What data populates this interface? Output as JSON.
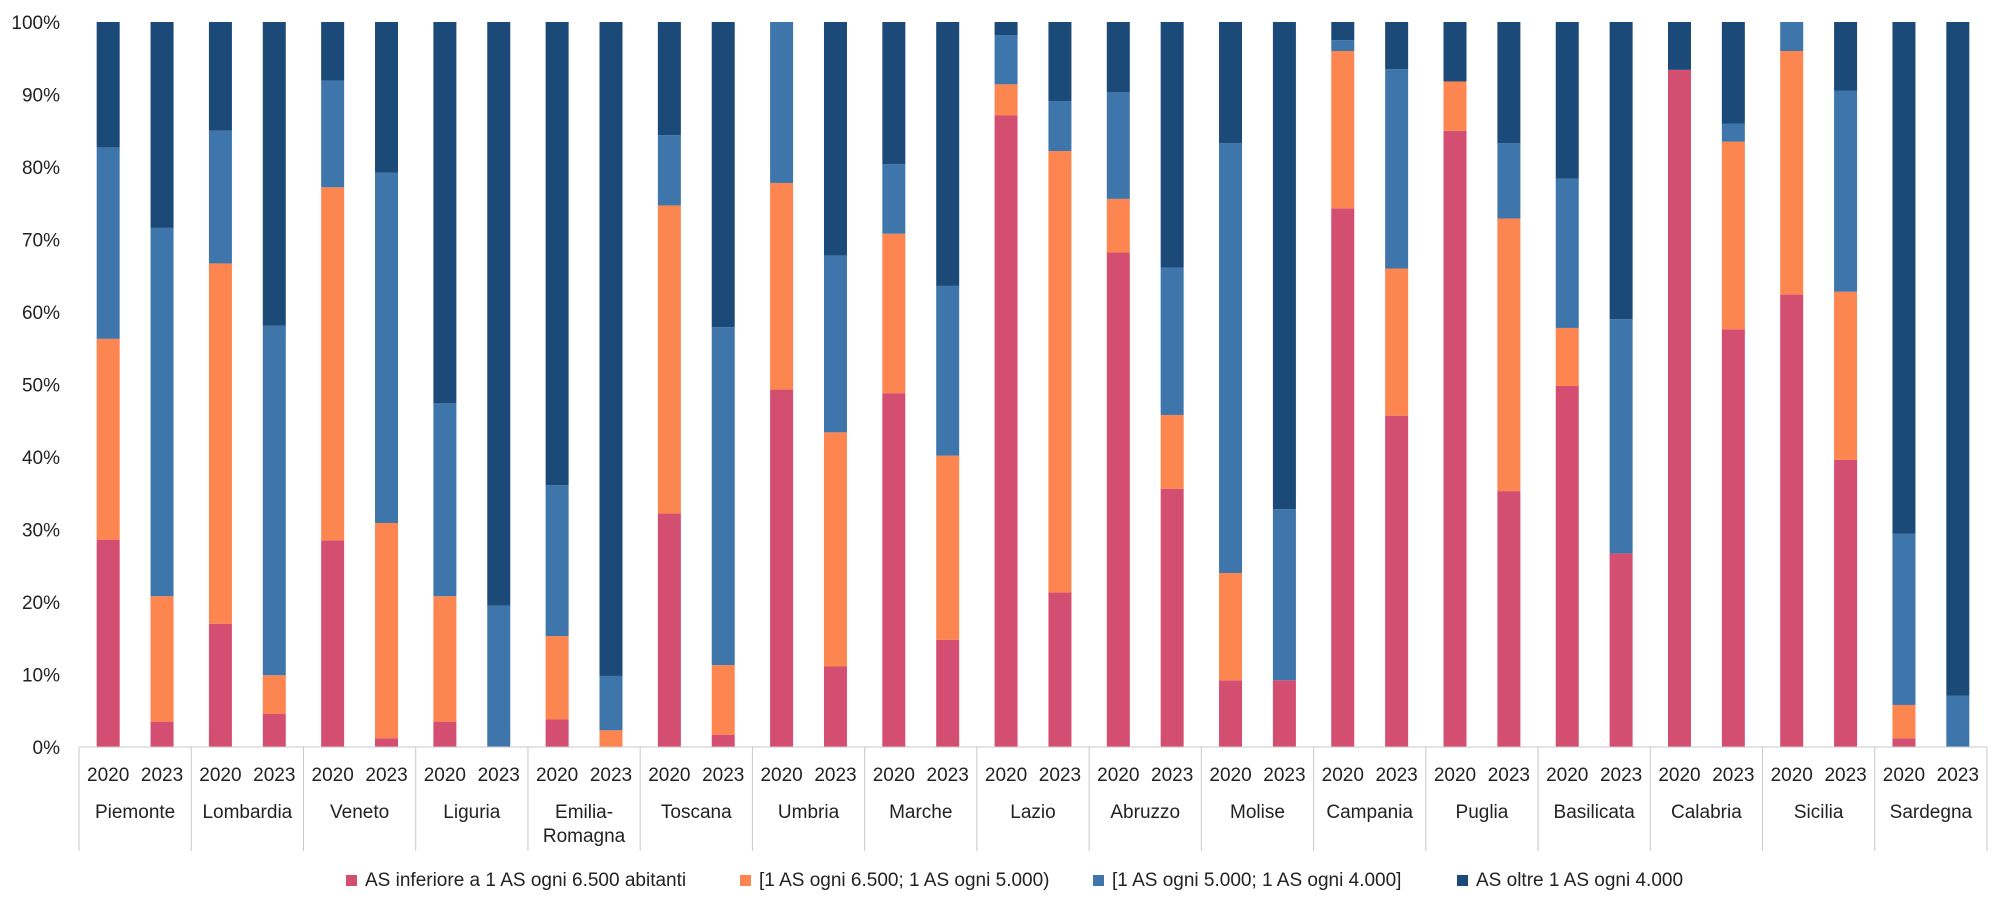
{
  "chart_data": {
    "type": "bar",
    "stacked": true,
    "ylim": [
      0,
      100
    ],
    "y_ticks": [
      "0%",
      "10%",
      "20%",
      "30%",
      "40%",
      "50%",
      "60%",
      "70%",
      "80%",
      "90%",
      "100%"
    ],
    "grid": false,
    "legend_position": "bottom",
    "groups": [
      {
        "region": "Piemonte",
        "years": [
          "2020",
          "2023"
        ]
      },
      {
        "region": "Lombardia",
        "years": [
          "2020",
          "2023"
        ]
      },
      {
        "region": "Veneto",
        "years": [
          "2020",
          "2023"
        ]
      },
      {
        "region": "Liguria",
        "years": [
          "2020",
          "2023"
        ]
      },
      {
        "region": "Emilia-\nRomagna",
        "years": [
          "2020",
          "2023"
        ]
      },
      {
        "region": "Toscana",
        "years": [
          "2020",
          "2023"
        ]
      },
      {
        "region": "Umbria",
        "years": [
          "2020",
          "2023"
        ]
      },
      {
        "region": "Marche",
        "years": [
          "2020",
          "2023"
        ]
      },
      {
        "region": "Lazio",
        "years": [
          "2020",
          "2023"
        ]
      },
      {
        "region": "Abruzzo",
        "years": [
          "2020",
          "2023"
        ]
      },
      {
        "region": "Molise",
        "years": [
          "2020",
          "2023"
        ]
      },
      {
        "region": "Campania",
        "years": [
          "2020",
          "2023"
        ]
      },
      {
        "region": "Puglia",
        "years": [
          "2020",
          "2023"
        ]
      },
      {
        "region": "Basilicata",
        "years": [
          "2020",
          "2023"
        ]
      },
      {
        "region": "Calabria",
        "years": [
          "2020",
          "2023"
        ]
      },
      {
        "region": "Sicilia",
        "years": [
          "2020",
          "2023"
        ]
      },
      {
        "region": "Sardegna",
        "years": [
          "2020",
          "2023"
        ]
      }
    ],
    "series": [
      {
        "name": "AS inferiore a 1 AS ogni 6.500 abitanti",
        "color": "#d44e72",
        "values": [
          28.6,
          3.5,
          17.0,
          4.6,
          28.5,
          1.2,
          3.5,
          0.0,
          3.8,
          0.0,
          32.2,
          1.7,
          49.3,
          11.1,
          48.8,
          14.8,
          87.1,
          21.3,
          68.2,
          35.6,
          9.2,
          9.2,
          74.3,
          45.7,
          85.0,
          35.3,
          49.8,
          26.7,
          93.4,
          57.6,
          62.4,
          39.6,
          1.2,
          0.0
        ]
      },
      {
        "name": "[1 AS ogni 6.500; 1 AS ogni 5.000)",
        "color": "#fc8550",
        "values": [
          27.7,
          17.3,
          49.7,
          5.3,
          48.7,
          29.7,
          17.3,
          0.0,
          11.5,
          2.3,
          42.5,
          9.6,
          28.5,
          32.3,
          22.0,
          25.4,
          4.3,
          60.9,
          7.4,
          10.2,
          14.8,
          0.0,
          21.7,
          20.3,
          6.8,
          37.6,
          8.0,
          0.0,
          0.0,
          25.9,
          33.6,
          23.2,
          4.6,
          0.0
        ]
      },
      {
        "name": "[1 AS ogni 5.000; 1 AS ogni 4.000]",
        "color": "#3e76ac",
        "values": [
          26.4,
          50.8,
          18.3,
          48.2,
          14.7,
          48.3,
          26.6,
          19.5,
          20.8,
          7.5,
          9.7,
          46.6,
          22.2,
          24.4,
          9.6,
          23.4,
          6.8,
          6.9,
          14.7,
          20.3,
          59.3,
          23.6,
          1.5,
          27.5,
          0.0,
          10.4,
          20.6,
          32.3,
          0.0,
          2.5,
          4.0,
          27.7,
          23.6,
          7.1
        ]
      },
      {
        "name": "AS oltre 1 AS ogni 4.000",
        "color": "#1b4a78",
        "values": [
          17.3,
          28.4,
          15.0,
          41.9,
          8.1,
          20.8,
          52.6,
          80.5,
          63.9,
          90.2,
          15.6,
          42.1,
          0.0,
          32.2,
          19.6,
          36.4,
          1.8,
          10.9,
          9.7,
          33.9,
          16.7,
          67.2,
          2.5,
          6.5,
          8.2,
          16.7,
          21.6,
          41.0,
          6.6,
          14.0,
          0.0,
          9.5,
          70.6,
          92.9
        ]
      }
    ]
  }
}
